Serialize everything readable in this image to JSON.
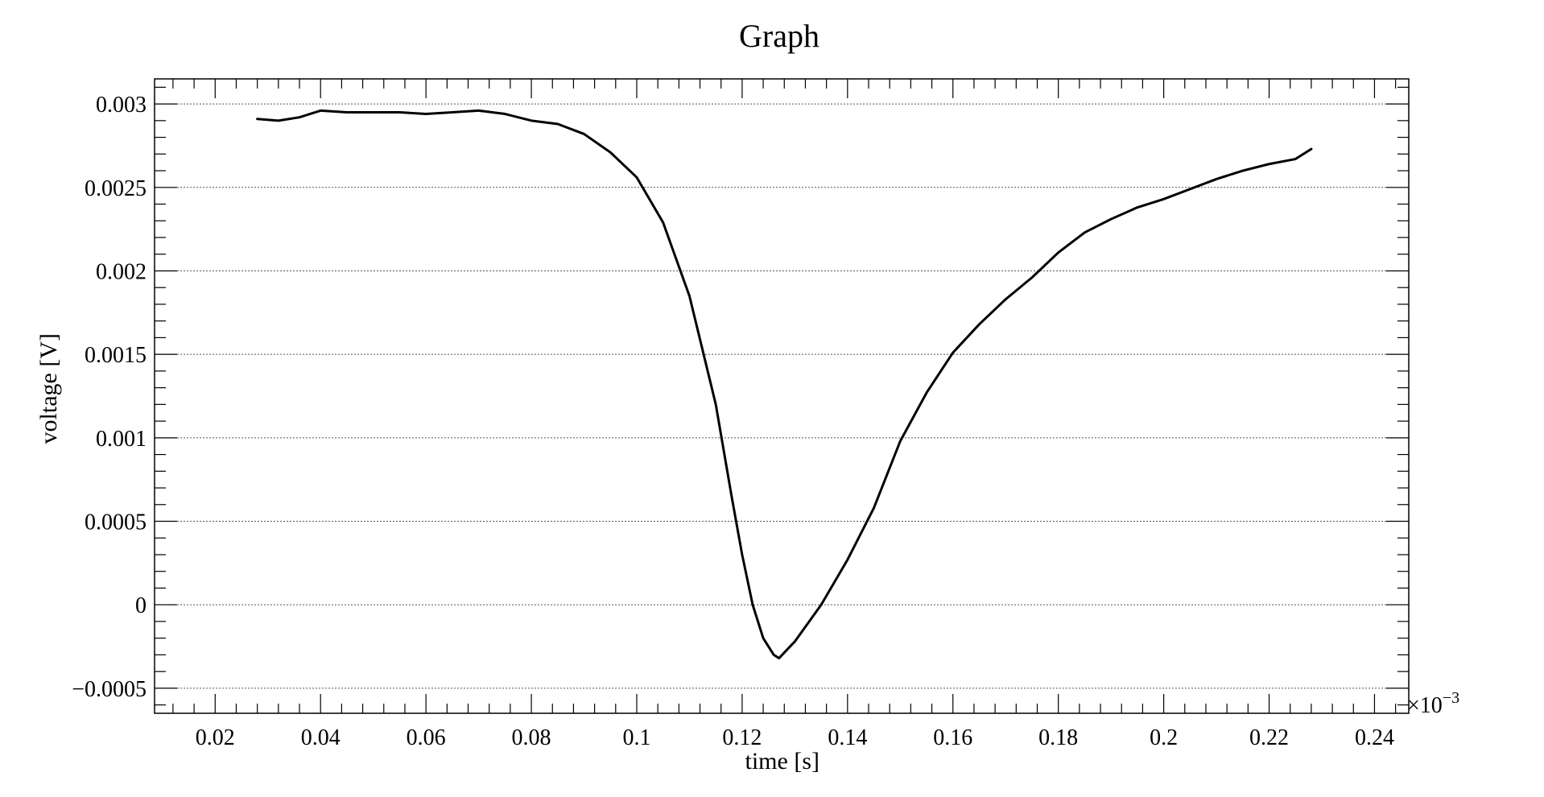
{
  "chart_data": {
    "type": "line",
    "title": "Graph",
    "xlabel": "time [s]",
    "ylabel": "voltage [V]",
    "x_multiplier_label": "×10",
    "x_multiplier_exponent": "−3",
    "xlim": [
      0.0085,
      0.2465
    ],
    "ylim": [
      -0.00065,
      0.00315
    ],
    "x_ticks": [
      {
        "value": 0.02,
        "label": "0.02"
      },
      {
        "value": 0.04,
        "label": "0.04"
      },
      {
        "value": 0.06,
        "label": "0.06"
      },
      {
        "value": 0.08,
        "label": "0.08"
      },
      {
        "value": 0.1,
        "label": "0.1"
      },
      {
        "value": 0.12,
        "label": "0.12"
      },
      {
        "value": 0.14,
        "label": "0.14"
      },
      {
        "value": 0.16,
        "label": "0.16"
      },
      {
        "value": 0.18,
        "label": "0.18"
      },
      {
        "value": 0.2,
        "label": "0.2"
      },
      {
        "value": 0.22,
        "label": "0.22"
      },
      {
        "value": 0.24,
        "label": "0.24"
      }
    ],
    "y_ticks": [
      {
        "value": -0.0005,
        "label": "−0.0005"
      },
      {
        "value": 0,
        "label": "0"
      },
      {
        "value": 0.0005,
        "label": "0.0005"
      },
      {
        "value": 0.001,
        "label": "0.001"
      },
      {
        "value": 0.0015,
        "label": "0.0015"
      },
      {
        "value": 0.002,
        "label": "0.002"
      },
      {
        "value": 0.0025,
        "label": "0.0025"
      },
      {
        "value": 0.003,
        "label": "0.003"
      }
    ],
    "grid": {
      "x": false,
      "y": true
    },
    "series": [
      {
        "color": "#000000",
        "x": [
          0.028,
          0.032,
          0.036,
          0.04,
          0.045,
          0.05,
          0.055,
          0.06,
          0.065,
          0.07,
          0.075,
          0.08,
          0.085,
          0.09,
          0.095,
          0.1,
          0.105,
          0.11,
          0.115,
          0.118,
          0.12,
          0.122,
          0.124,
          0.126,
          0.127,
          0.13,
          0.135,
          0.14,
          0.145,
          0.15,
          0.155,
          0.16,
          0.165,
          0.17,
          0.175,
          0.18,
          0.185,
          0.19,
          0.195,
          0.2,
          0.205,
          0.21,
          0.215,
          0.22,
          0.225,
          0.228
        ],
        "y": [
          0.00291,
          0.0029,
          0.00292,
          0.00296,
          0.00295,
          0.00295,
          0.00295,
          0.00294,
          0.00295,
          0.00296,
          0.00294,
          0.0029,
          0.00288,
          0.00282,
          0.00271,
          0.00256,
          0.00229,
          0.00185,
          0.0012,
          0.00065,
          0.0003,
          0.0,
          -0.0002,
          -0.0003,
          -0.00032,
          -0.00022,
          0.0,
          0.00027,
          0.00058,
          0.00098,
          0.00127,
          0.00151,
          0.00168,
          0.00183,
          0.00196,
          0.00211,
          0.00223,
          0.00231,
          0.00238,
          0.00243,
          0.00249,
          0.00255,
          0.0026,
          0.00264,
          0.00267,
          0.00273
        ]
      }
    ]
  }
}
